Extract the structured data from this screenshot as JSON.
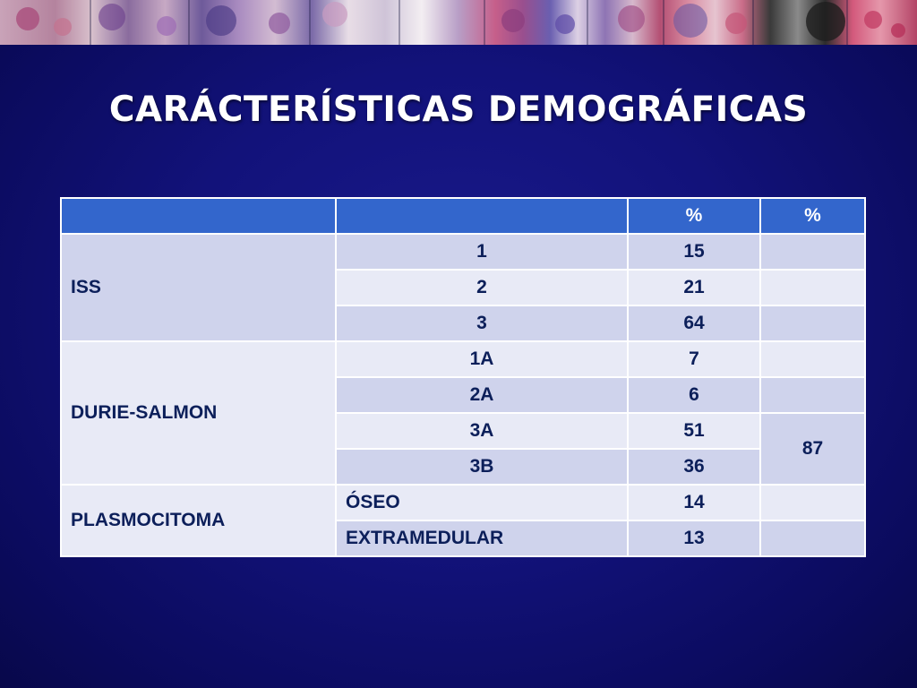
{
  "slide": {
    "title": "CARÁCTERÍSTICAS DEMOGRÁFICAS"
  },
  "table": {
    "headers": [
      "",
      "",
      "%",
      "%"
    ],
    "groups": [
      {
        "label": "ISS",
        "rows": [
          {
            "category": "1",
            "pct": "15",
            "pct2": ""
          },
          {
            "category": "2",
            "pct": "21",
            "pct2": ""
          },
          {
            "category": "3",
            "pct": "64",
            "pct2": ""
          }
        ]
      },
      {
        "label": "DURIE-SALMON",
        "rows": [
          {
            "category": "1A",
            "pct": "7",
            "pct2": ""
          },
          {
            "category": "2A",
            "pct": "6",
            "pct2": ""
          },
          {
            "category": "3A",
            "pct": "51",
            "pct2": "87"
          },
          {
            "category": "3B",
            "pct": "36",
            "pct2": ""
          }
        ]
      },
      {
        "label": "PLASMOCITOMA",
        "rows": [
          {
            "category": "ÓSEO",
            "pct": "14",
            "pct2": ""
          },
          {
            "category": "EXTRAMEDULAR",
            "pct": "13",
            "pct2": ""
          }
        ]
      }
    ]
  },
  "colors": {
    "background": "#12127a",
    "header_fill": "#3366cc",
    "row_fill_dark": "#cfd3ec",
    "row_fill_light": "#e8eaf6",
    "cell_text": "#0c1f5a",
    "title_text": "#ffffff"
  },
  "banner": {
    "icon": "microscopy-image-strip"
  }
}
